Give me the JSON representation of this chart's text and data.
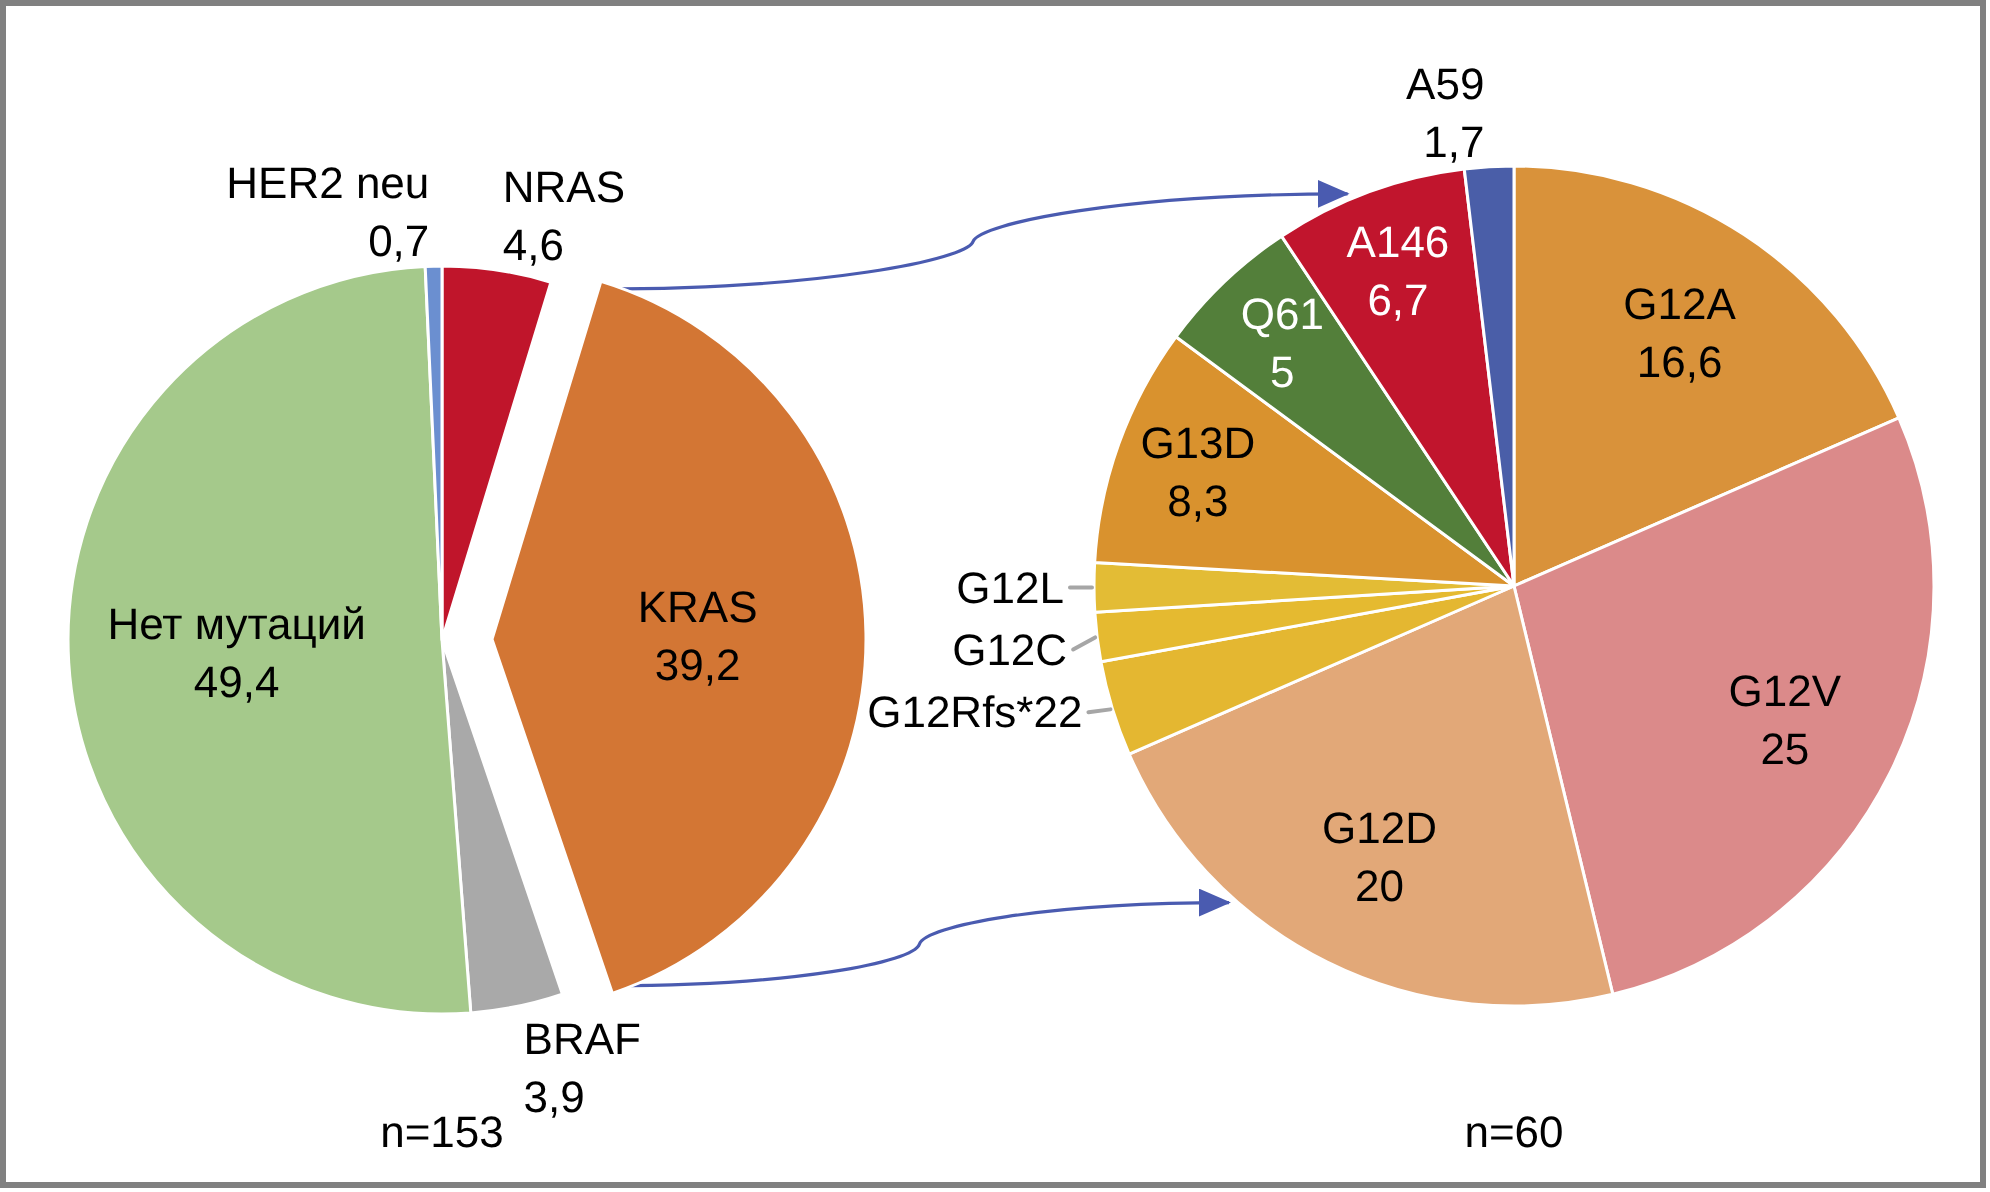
{
  "chart_data": [
    {
      "type": "pie",
      "categories": [
        "NRAS",
        "KRAS",
        "BRAF",
        "Нет мутаций",
        "HER2 neu"
      ],
      "values": [
        4.6,
        39.2,
        3.9,
        49.4,
        0.7
      ],
      "value_labels": [
        "4,6",
        "39,2",
        "3,9",
        "49,4",
        "0,7"
      ],
      "colors": [
        "#c0152b",
        "#d37634",
        "#a9a9a9",
        "#a5c98b",
        "#6b8fd0"
      ],
      "annotations": [
        "n=153"
      ]
    },
    {
      "type": "pie",
      "categories": [
        "G12A",
        "G12V",
        "G12D",
        "G12Rfs*22",
        "G12C",
        "G12L",
        "G13D",
        "Q61",
        "A146",
        "A59"
      ],
      "values": [
        16.6,
        25,
        20,
        3.3,
        1.7,
        1.7,
        8.3,
        5,
        6.7,
        1.7
      ],
      "value_labels": [
        "16,6",
        "25",
        "20",
        null,
        null,
        null,
        "8,3",
        "5",
        "6,7",
        "1,7"
      ],
      "colors": [
        "#d9923a",
        "#db8a8a",
        "#e2a878",
        "#e4b731",
        "#e5ba30",
        "#e3bc35",
        "#d9922e",
        "#537f3a",
        "#c1152d",
        "#4a5ea8"
      ],
      "annotations": [
        "n=60"
      ]
    }
  ]
}
